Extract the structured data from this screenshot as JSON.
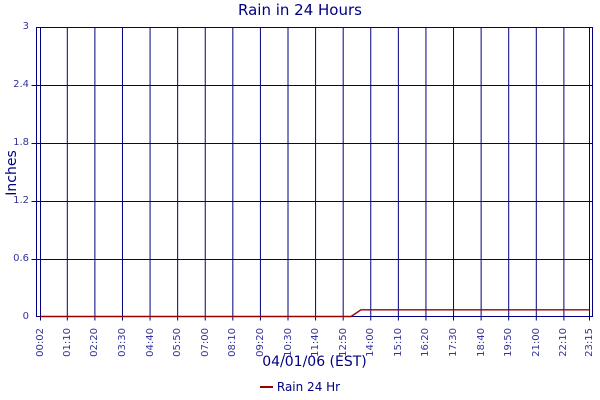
{
  "page": {
    "background": "#ffffff"
  },
  "chart_data": {
    "type": "line",
    "title": "Rain in 24 Hours",
    "xlabel": "04/01/06 (EST)",
    "ylabel": "Inches",
    "ylim": [
      0,
      3
    ],
    "yticks": [
      0,
      0.6,
      1.2,
      1.8,
      2.4,
      3
    ],
    "ytick_labels": [
      "0",
      "0.6",
      "1.2",
      "1.8",
      "2.4",
      "3"
    ],
    "xtick_labels": [
      "00:02",
      "01:10",
      "02:20",
      "03:30",
      "04:40",
      "05:50",
      "07:00",
      "08:10",
      "09:20",
      "10:30",
      "11:40",
      "12:50",
      "14:00",
      "15:10",
      "16:20",
      "17:30",
      "18:40",
      "19:50",
      "21:00",
      "22:10",
      "23:15"
    ],
    "grid": true,
    "legend": {
      "position": "bottom-center",
      "label": "Rain 24 Hr"
    },
    "series": [
      {
        "name": "Rain 24 Hr",
        "color": "#990000",
        "points": [
          [
            "00:02",
            0
          ],
          [
            "13:10",
            0
          ],
          [
            "13:35",
            0.08
          ],
          [
            "23:15",
            0.08
          ]
        ]
      }
    ],
    "colors": {
      "title": "#000080",
      "axis": "#000080",
      "grid": "#000080",
      "tick_label": "#333399",
      "axis_label": "#000080",
      "legend_text": "#000080"
    }
  }
}
